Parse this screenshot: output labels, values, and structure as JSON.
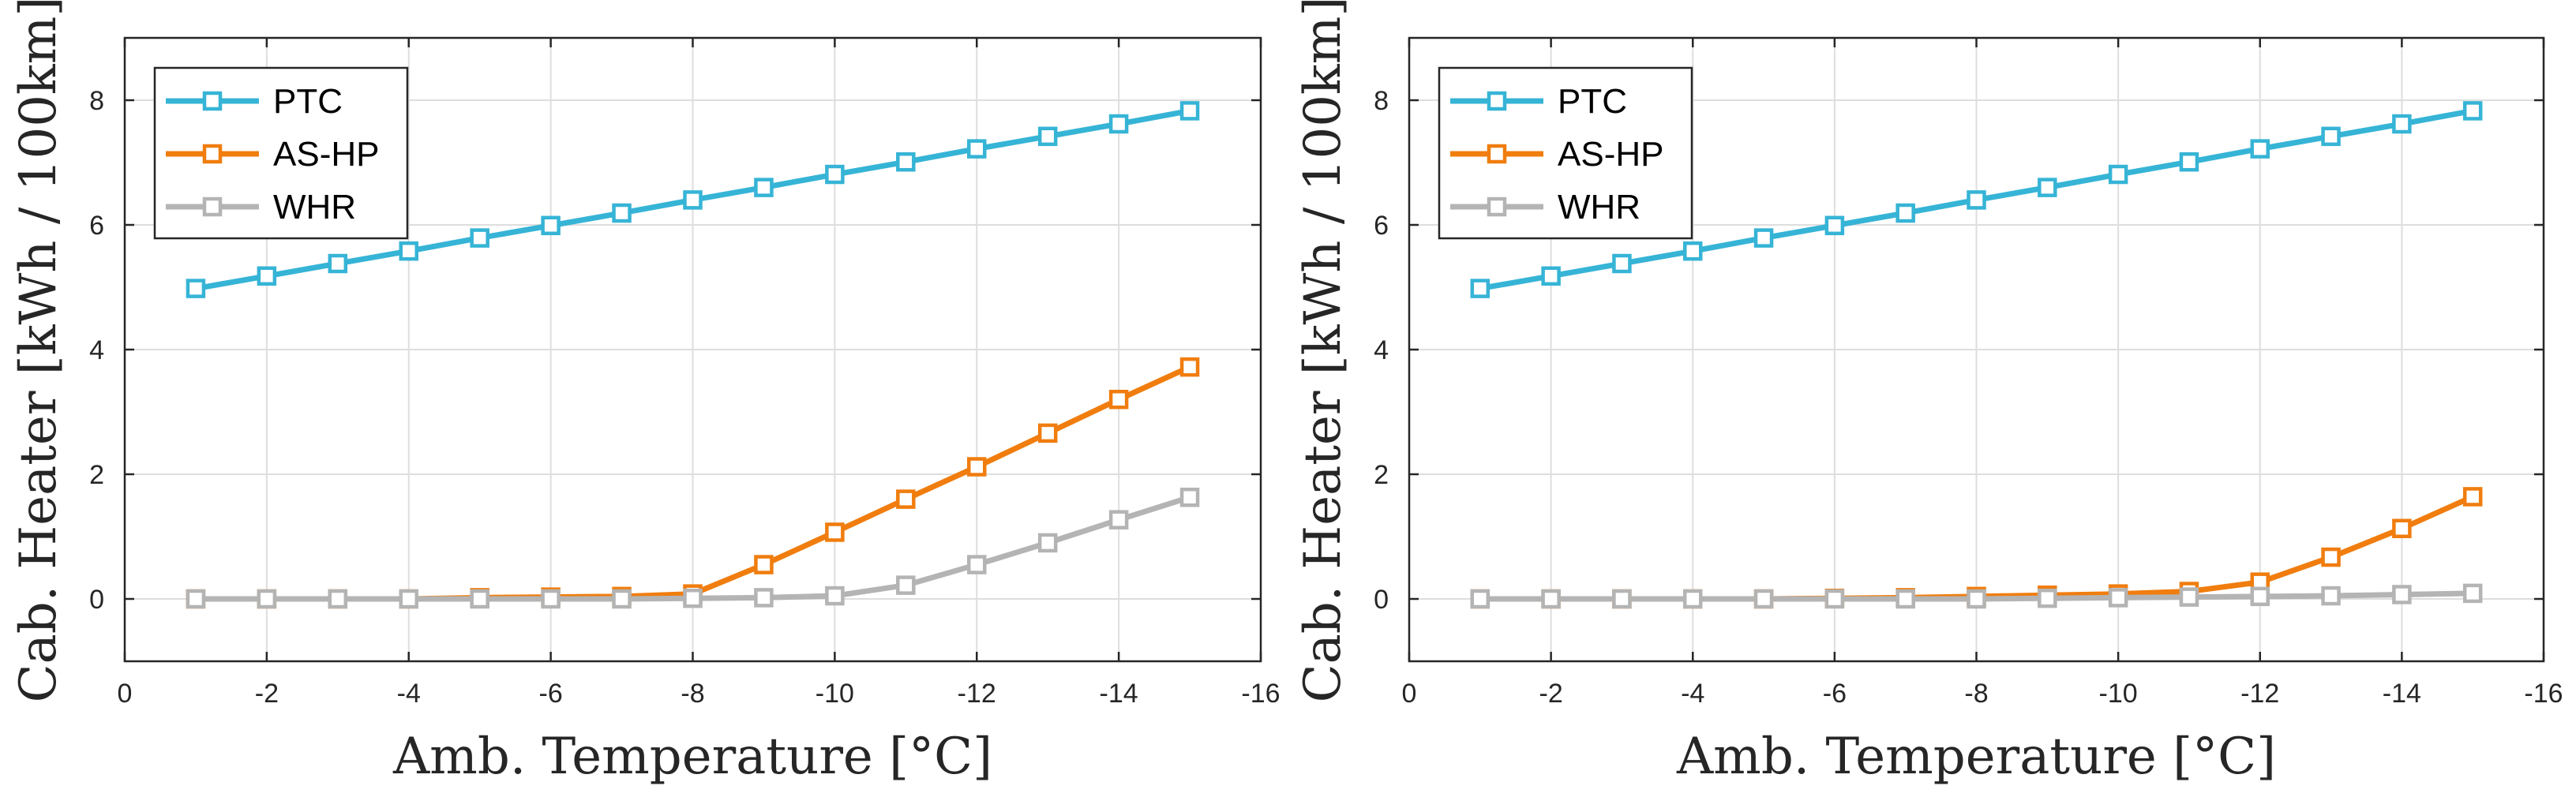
{
  "chart_data": [
    {
      "type": "line",
      "title": "",
      "xlabel": "Amb. Temperature [°C]",
      "ylabel": "Cab. Heater [kWh / 100km]",
      "xlim": [
        0,
        -16
      ],
      "ylim": [
        -1,
        9
      ],
      "xticks": [
        0,
        -2,
        -4,
        -6,
        -8,
        -10,
        -12,
        -14,
        -16
      ],
      "yticks": [
        0,
        2,
        4,
        6,
        8
      ],
      "grid": true,
      "legend_position": "top-left",
      "x": [
        -1,
        -2,
        -3,
        -4,
        -5,
        -6,
        -7,
        -8,
        -9,
        -10,
        -11,
        -12,
        -13,
        -14,
        -15
      ],
      "series": [
        {
          "name": "PTC",
          "color": "#36b4d6",
          "values": [
            4.98,
            5.18,
            5.38,
            5.58,
            5.79,
            5.99,
            6.19,
            6.4,
            6.6,
            6.81,
            7.01,
            7.22,
            7.42,
            7.62,
            7.83
          ]
        },
        {
          "name": "AS-HP",
          "color": "#f07d0e",
          "values": [
            0.0,
            0.0,
            0.0,
            0.0,
            0.02,
            0.03,
            0.04,
            0.08,
            0.55,
            1.07,
            1.6,
            2.12,
            2.66,
            3.2,
            3.72
          ]
        },
        {
          "name": "WHR",
          "color": "#b4b4b4",
          "values": [
            0.0,
            0.0,
            0.0,
            0.0,
            0.0,
            0.0,
            0.0,
            0.01,
            0.02,
            0.05,
            0.22,
            0.55,
            0.9,
            1.27,
            1.63
          ]
        }
      ]
    },
    {
      "type": "line",
      "title": "",
      "xlabel": "Amb. Temperature [°C]",
      "ylabel": "Cab. Heater [kWh / 100km]",
      "xlim": [
        0,
        -16
      ],
      "ylim": [
        -1,
        9
      ],
      "xticks": [
        0,
        -2,
        -4,
        -6,
        -8,
        -10,
        -12,
        -14,
        -16
      ],
      "yticks": [
        0,
        2,
        4,
        6,
        8
      ],
      "grid": true,
      "legend_position": "top-left",
      "x": [
        -1,
        -2,
        -3,
        -4,
        -5,
        -6,
        -7,
        -8,
        -9,
        -10,
        -11,
        -12,
        -13,
        -14,
        -15
      ],
      "series": [
        {
          "name": "PTC",
          "color": "#36b4d6",
          "values": [
            4.98,
            5.18,
            5.38,
            5.58,
            5.79,
            5.99,
            6.19,
            6.4,
            6.6,
            6.81,
            7.01,
            7.22,
            7.42,
            7.62,
            7.83
          ]
        },
        {
          "name": "AS-HP",
          "color": "#f07d0e",
          "values": [
            0.0,
            0.0,
            0.0,
            0.0,
            0.0,
            0.01,
            0.02,
            0.04,
            0.06,
            0.08,
            0.12,
            0.27,
            0.67,
            1.13,
            1.64
          ]
        },
        {
          "name": "WHR",
          "color": "#b4b4b4",
          "values": [
            0.0,
            0.0,
            0.0,
            0.0,
            0.0,
            0.0,
            0.0,
            0.0,
            0.01,
            0.02,
            0.03,
            0.04,
            0.05,
            0.07,
            0.09
          ]
        }
      ]
    }
  ]
}
